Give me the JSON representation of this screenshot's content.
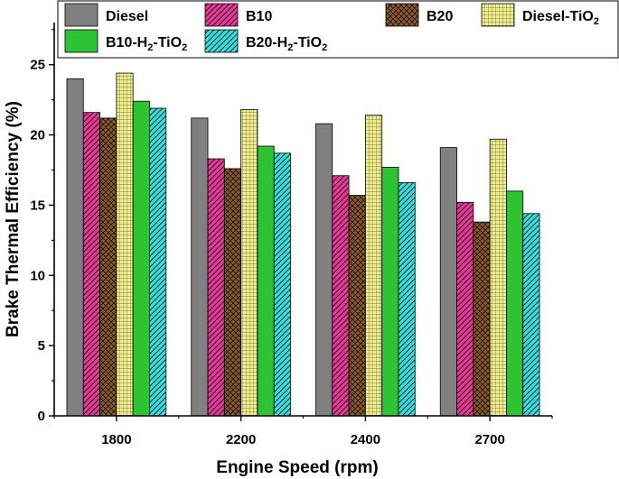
{
  "chart_data": {
    "type": "bar",
    "title": "",
    "xlabel": "Engine Speed (rpm)",
    "ylabel": "Brake Thermal Efficiency (%)",
    "ylim": [
      0,
      28
    ],
    "yticks": [
      0,
      5,
      10,
      15,
      20,
      25
    ],
    "categories": [
      "1800",
      "2200",
      "2400",
      "2700"
    ],
    "legend_position": "top",
    "series": [
      {
        "name": "Diesel",
        "label_main": "Diesel",
        "label_mid": "",
        "label_sub": "",
        "label_end": "",
        "color": "#808080",
        "pattern": "solid",
        "values": [
          24.0,
          21.2,
          20.8,
          19.1
        ]
      },
      {
        "name": "B10",
        "label_main": "B10",
        "label_mid": "",
        "label_sub": "",
        "label_end": "",
        "color": "#e8399b",
        "pattern": "hatch",
        "values": [
          21.6,
          18.3,
          17.1,
          15.2
        ]
      },
      {
        "name": "B20",
        "label_main": "B20",
        "label_mid": "",
        "label_sub": "",
        "label_end": "",
        "color": "#8b5a2b",
        "pattern": "crosshatch",
        "values": [
          21.2,
          17.6,
          15.7,
          13.8
        ]
      },
      {
        "name": "Diesel-TiO2",
        "label_main": "Diesel-TiO",
        "label_mid": "2",
        "label_sub": "",
        "label_end": "",
        "color": "#f2f07a",
        "pattern": "grid",
        "values": [
          24.4,
          21.8,
          21.4,
          19.7
        ]
      },
      {
        "name": "B10-H2-TiO2",
        "label_main": "B10-H",
        "label_mid": "2",
        "label_sub": "-TiO",
        "label_end": "2",
        "color": "#2ec332",
        "pattern": "solid",
        "values": [
          22.4,
          19.2,
          17.7,
          16.0
        ]
      },
      {
        "name": "B20-H2-TiO2",
        "label_main": "B20-H",
        "label_mid": "2",
        "label_sub": "-TiO",
        "label_end": "2",
        "color": "#34e0e0",
        "pattern": "hatch",
        "values": [
          21.9,
          18.7,
          16.6,
          14.4
        ]
      }
    ]
  }
}
